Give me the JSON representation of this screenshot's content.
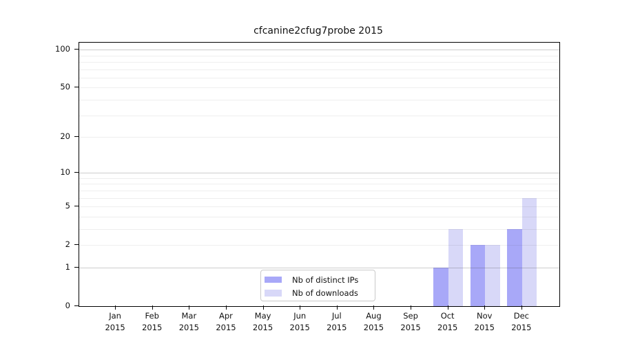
{
  "chart_data": {
    "type": "bar",
    "title": "cfcanine2cfug7probe 2015",
    "x_categories": [
      "Jan",
      "Feb",
      "Mar",
      "Apr",
      "May",
      "Jun",
      "Jul",
      "Aug",
      "Sep",
      "Oct",
      "Nov",
      "Dec"
    ],
    "x_sublabel": "2015",
    "yticks": [
      0,
      1,
      2,
      5,
      10,
      20,
      50,
      100
    ],
    "ylim": [
      0,
      100
    ],
    "yscale": "log10(1+value)",
    "grid": {
      "major": [
        1,
        10,
        100
      ],
      "minor": [
        2,
        3,
        4,
        5,
        6,
        7,
        8,
        9,
        20,
        30,
        40,
        50,
        60,
        70,
        80,
        90
      ]
    },
    "legend_position": "inside-bottom-center",
    "series": [
      {
        "name": "Nb of distinct IPs",
        "color": "#a8a8f8",
        "values": [
          0,
          0,
          0,
          0,
          0,
          0,
          0,
          0,
          0,
          1,
          2,
          3
        ]
      },
      {
        "name": "Nb of downloads",
        "color": "#d8d8f8",
        "values": [
          0,
          0,
          0,
          0,
          0,
          0,
          0,
          0,
          0,
          3,
          2,
          6
        ]
      }
    ]
  },
  "colors": {
    "axis": "#000000",
    "grid_major": "#d2d2d2",
    "grid_minor": "#eeeeee",
    "text": "#111111",
    "legend_border": "#c9c9c9",
    "background": "#ffffff"
  }
}
